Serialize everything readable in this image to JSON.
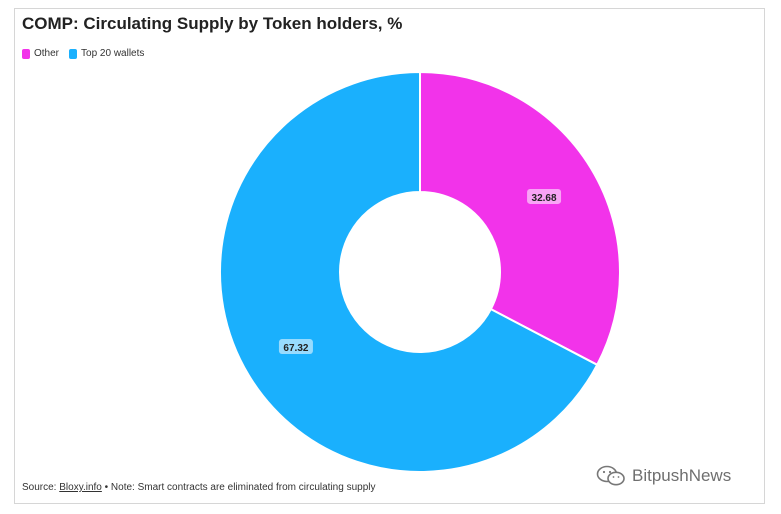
{
  "chart_data": {
    "type": "pie",
    "title": "COMP: Circulating Supply by Token holders, %",
    "legend": [
      "Other",
      "Top 20 wallets"
    ],
    "slices": [
      {
        "name": "Other",
        "value": 32.68,
        "label": "32.68",
        "color": "#f233ea"
      },
      {
        "name": "Top 20 wallets",
        "value": 67.32,
        "label": "67.32",
        "color": "#1ab0fd"
      }
    ],
    "donut": true
  },
  "footer": {
    "source_prefix": "Source: ",
    "source_link": "Bloxy.info",
    "note": " • Note: Smart contracts are eliminated from circulating supply"
  },
  "watermark": {
    "text": "BitpushNews",
    "icon": "wechat-icon"
  }
}
